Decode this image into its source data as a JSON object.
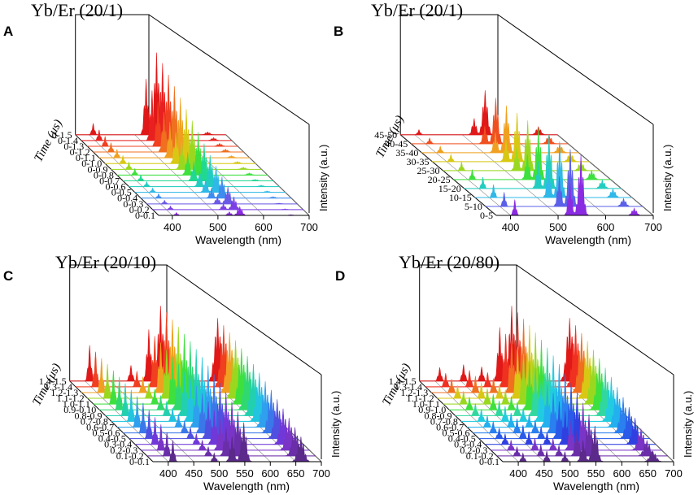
{
  "figure": {
    "description_free": true,
    "panels_count": 4
  },
  "chart_data": [
    {
      "type": "area",
      "panel_label": "A",
      "title": "Yb/Er (20/1)",
      "xlabel": "Wavelength (nm)",
      "zlabel": "Intensity (a.u.)",
      "ylabel": "Time (μs)",
      "xlim": [
        370,
        700
      ],
      "xticks": [
        400,
        500,
        600,
        700
      ],
      "time_labels": [
        "0-0.1",
        "0-0.2",
        "0-0.3",
        "0-0.4",
        "0-0.5",
        "0-0.6",
        "0-0.7",
        "0-0.8",
        "0-0.9",
        "0-1.0",
        "0-1.1",
        "0-1.2",
        "0-1.3",
        "0-1.4",
        "0-1.5"
      ],
      "series_colors": [
        "#8a2be2",
        "#7b3fe4",
        "#6a5ae6",
        "#3f8cf0",
        "#2fb8e8",
        "#22cdc0",
        "#20d890",
        "#3ee03e",
        "#9ad820",
        "#d8c814",
        "#f0a020",
        "#f07020",
        "#f04020",
        "#e82020",
        "#e01818"
      ],
      "peaks": [
        {
          "center": 409,
          "width": 3,
          "scale": [
            0.04,
            0.05,
            0.05,
            0.06,
            0.06,
            0.07,
            0.08,
            0.09,
            0.1,
            0.11,
            0.12,
            0.13,
            0.14,
            0.15,
            0.16
          ]
        },
        {
          "center": 525,
          "width": 4,
          "scale": [
            0.05,
            0.08,
            0.1,
            0.14,
            0.18,
            0.22,
            0.27,
            0.32,
            0.38,
            0.44,
            0.5,
            0.56,
            0.62,
            0.7,
            0.78
          ]
        },
        {
          "center": 548,
          "width": 5,
          "scale": [
            0.12,
            0.18,
            0.24,
            0.3,
            0.37,
            0.44,
            0.52,
            0.6,
            0.68,
            0.76,
            0.84,
            0.92,
            1.0,
            1.08,
            1.15
          ]
        },
        {
          "center": 660,
          "width": 5,
          "scale": [
            0.01,
            0.01,
            0.01,
            0.02,
            0.02,
            0.02,
            0.02,
            0.03,
            0.03,
            0.03,
            0.03,
            0.04,
            0.04,
            0.04,
            0.04
          ]
        }
      ]
    },
    {
      "type": "area",
      "panel_label": "B",
      "title": "Yb/Er (20/1)",
      "xlabel": "Wavelength (nm)",
      "zlabel": "Intensity (a.u.)",
      "ylabel": "Time (μs)",
      "xlim": [
        370,
        700
      ],
      "xticks": [
        400,
        500,
        600,
        700
      ],
      "time_labels": [
        "0-5",
        "5-10",
        "10-15",
        "15-20",
        "20-25",
        "25-30",
        "30-35",
        "35-40",
        "40-45",
        "45-50"
      ],
      "series_colors": [
        "#8a2be2",
        "#5a60e8",
        "#2fb8e8",
        "#22cdc0",
        "#3ee03e",
        "#9ad820",
        "#d8c814",
        "#f0a020",
        "#f05020",
        "#e01818"
      ],
      "peaks": [
        {
          "center": 409,
          "width": 3,
          "scale": [
            0.22,
            0.2,
            0.18,
            0.16,
            0.14,
            0.12,
            0.1,
            0.09,
            0.08,
            0.07
          ]
        },
        {
          "center": 525,
          "width": 4,
          "scale": [
            0.45,
            0.42,
            0.4,
            0.38,
            0.35,
            0.32,
            0.3,
            0.28,
            0.25,
            0.23
          ]
        },
        {
          "center": 548,
          "width": 5,
          "scale": [
            0.85,
            0.8,
            0.78,
            0.75,
            0.72,
            0.7,
            0.68,
            0.66,
            0.64,
            0.62
          ]
        },
        {
          "center": 660,
          "width": 5,
          "scale": [
            0.1,
            0.11,
            0.12,
            0.12,
            0.13,
            0.13,
            0.13,
            0.12,
            0.12,
            0.11
          ]
        }
      ]
    },
    {
      "type": "area",
      "panel_label": "C",
      "title": "Yb/Er (20/10)",
      "xlabel": "Wavelength (nm)",
      "zlabel": "Intensity (a.u.)",
      "ylabel": "Time (μs)",
      "xlim": [
        370,
        700
      ],
      "xticks": [
        400,
        450,
        500,
        550,
        600,
        650,
        700
      ],
      "time_labels": [
        "0-0.1",
        "0.1-0.2",
        "0.2-0.3",
        "0.3-0.4",
        "0.4-0.5",
        "0.5-0.6",
        "0.6-0.7",
        "0.7-0.8",
        "0.8-0.9",
        "0.9-0.10",
        "1.0-1.1",
        "1.1-1.2",
        "1.2-1.3",
        "1.3-1.4",
        "1.4-1.5"
      ],
      "series_colors": [
        "#5b2a8a",
        "#6a2fa8",
        "#7a34c6",
        "#7038d8",
        "#5050e0",
        "#3a78ea",
        "#2fa0ee",
        "#22c4e0",
        "#22d0b0",
        "#30d870",
        "#3ee03e",
        "#9ad820",
        "#f0a020",
        "#f04020",
        "#e01818"
      ],
      "peaks": [
        {
          "center": 409,
          "width": 3,
          "scale": [
            0.3,
            0.33,
            0.36,
            0.38,
            0.4,
            0.42,
            0.43,
            0.44,
            0.45,
            0.46,
            0.47,
            0.48,
            0.48,
            0.49,
            0.5
          ]
        },
        {
          "center": 490,
          "width": 3,
          "scale": [
            0.12,
            0.13,
            0.14,
            0.15,
            0.16,
            0.17,
            0.18,
            0.19,
            0.2,
            0.2,
            0.21,
            0.21,
            0.22,
            0.22,
            0.22
          ]
        },
        {
          "center": 525,
          "width": 4,
          "scale": [
            0.35,
            0.4,
            0.44,
            0.48,
            0.52,
            0.55,
            0.58,
            0.6,
            0.62,
            0.64,
            0.66,
            0.68,
            0.7,
            0.71,
            0.72
          ]
        },
        {
          "center": 548,
          "width": 5,
          "scale": [
            0.55,
            0.62,
            0.68,
            0.73,
            0.78,
            0.82,
            0.86,
            0.9,
            0.93,
            0.96,
            0.98,
            1.0,
            1.02,
            1.04,
            1.05
          ]
        },
        {
          "center": 660,
          "width": 6,
          "scale": [
            0.35,
            0.4,
            0.45,
            0.5,
            0.55,
            0.6,
            0.64,
            0.68,
            0.72,
            0.75,
            0.78,
            0.81,
            0.84,
            0.86,
            0.88
          ]
        }
      ]
    },
    {
      "type": "area",
      "panel_label": "D",
      "title": "Yb/Er (20/80)",
      "xlabel": "Wavelength (nm)",
      "zlabel": "Intensity (a.u.)",
      "ylabel": "Time (μs)",
      "xlim": [
        370,
        700
      ],
      "xticks": [
        400,
        450,
        500,
        550,
        600,
        650,
        700
      ],
      "time_labels": [
        "0-0.1",
        "0.1-0.2",
        "0.2-0.3",
        "0.3-0.4",
        "0.4-0.5",
        "0.5-0.6",
        "0.6-0.7",
        "0.7-0.8",
        "0.8-0.9",
        "0.9-1.0",
        "1.0-1.1",
        "1.1-1.2",
        "1.2-1.3",
        "1.3-1.4",
        "1.4-1.5"
      ],
      "series_colors": [
        "#5b2a8a",
        "#6a2fa8",
        "#7a34c6",
        "#3040e0",
        "#2a5ae8",
        "#2a80ee",
        "#22b0ee",
        "#22cce0",
        "#30d8a0",
        "#3ee03e",
        "#9ad820",
        "#d8c814",
        "#f07020",
        "#f03020",
        "#e01818"
      ],
      "peaks": [
        {
          "center": 409,
          "width": 3,
          "scale": [
            0.12,
            0.13,
            0.14,
            0.15,
            0.15,
            0.16,
            0.16,
            0.17,
            0.17,
            0.18,
            0.18,
            0.18,
            0.19,
            0.19,
            0.19
          ]
        },
        {
          "center": 455,
          "width": 3,
          "scale": [
            0.15,
            0.16,
            0.17,
            0.18,
            0.19,
            0.2,
            0.2,
            0.21,
            0.21,
            0.22,
            0.22,
            0.22,
            0.23,
            0.23,
            0.23
          ]
        },
        {
          "center": 490,
          "width": 3,
          "scale": [
            0.14,
            0.15,
            0.16,
            0.17,
            0.17,
            0.18,
            0.18,
            0.19,
            0.19,
            0.19,
            0.2,
            0.2,
            0.2,
            0.2,
            0.2
          ]
        },
        {
          "center": 525,
          "width": 4,
          "scale": [
            0.3,
            0.36,
            0.42,
            0.47,
            0.52,
            0.56,
            0.6,
            0.63,
            0.66,
            0.68,
            0.7,
            0.72,
            0.73,
            0.74,
            0.75
          ]
        },
        {
          "center": 548,
          "width": 5,
          "scale": [
            0.5,
            0.58,
            0.66,
            0.72,
            0.78,
            0.83,
            0.88,
            0.92,
            0.95,
            0.98,
            1.0,
            1.02,
            1.03,
            1.04,
            1.05
          ]
        },
        {
          "center": 660,
          "width": 6,
          "scale": [
            0.15,
            0.22,
            0.3,
            0.37,
            0.44,
            0.5,
            0.56,
            0.62,
            0.67,
            0.72,
            0.76,
            0.8,
            0.83,
            0.86,
            0.88
          ]
        }
      ]
    }
  ]
}
